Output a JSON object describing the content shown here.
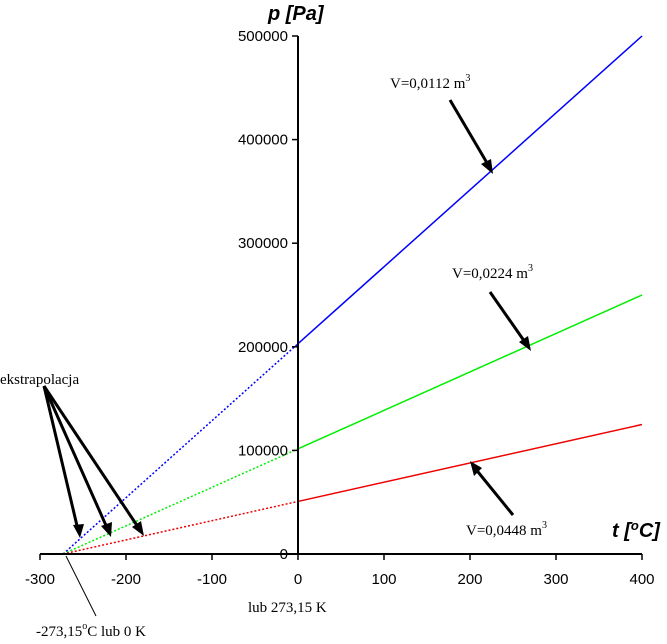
{
  "chart_data": {
    "type": "line",
    "x_unit_label": "t [",
    "x_unit_sup": "o",
    "x_unit_tail": "C]",
    "y_label": "p [Pa]",
    "xlim": [
      -300,
      400
    ],
    "ylim": [
      0,
      500000
    ],
    "x_ticks": [
      "-300",
      "-200",
      "-100",
      "0",
      "100",
      "200",
      "300",
      "400"
    ],
    "x_tick_values": [
      -300,
      -200,
      -100,
      0,
      100,
      200,
      300,
      400
    ],
    "y_ticks": [
      "0",
      "100000",
      "200000",
      "300000",
      "400000",
      "500000"
    ],
    "y_tick_values": [
      0,
      100000,
      200000,
      300000,
      400000,
      500000
    ],
    "series": [
      {
        "label_main": "V=0,0112 m",
        "label_sup": "3",
        "color": "#0000ff",
        "solid": [
          [
            0,
            203000
          ],
          [
            400,
            500000
          ]
        ],
        "dotted": [
          [
            -273.15,
            0
          ],
          [
            0,
            203000
          ]
        ]
      },
      {
        "label_main": "V=0,0224 m",
        "label_sup": "3",
        "color": "#00ee00",
        "solid": [
          [
            0,
            101500
          ],
          [
            400,
            250000
          ]
        ],
        "dotted": [
          [
            -273.15,
            0
          ],
          [
            0,
            101500
          ]
        ]
      },
      {
        "label_main": "V=0,0448 m",
        "label_sup": "3",
        "color": "#ee0000",
        "solid": [
          [
            0,
            50750
          ],
          [
            400,
            125000
          ]
        ],
        "dotted": [
          [
            -273.15,
            0
          ],
          [
            0,
            50750
          ]
        ]
      }
    ],
    "annotations": {
      "extrapolation": "ekstrapolacja",
      "zero_left": "-273,15",
      "zero_sup": "o",
      "zero_right": "C lub 0 K",
      "kelvin": "lub 273,15 K"
    }
  }
}
